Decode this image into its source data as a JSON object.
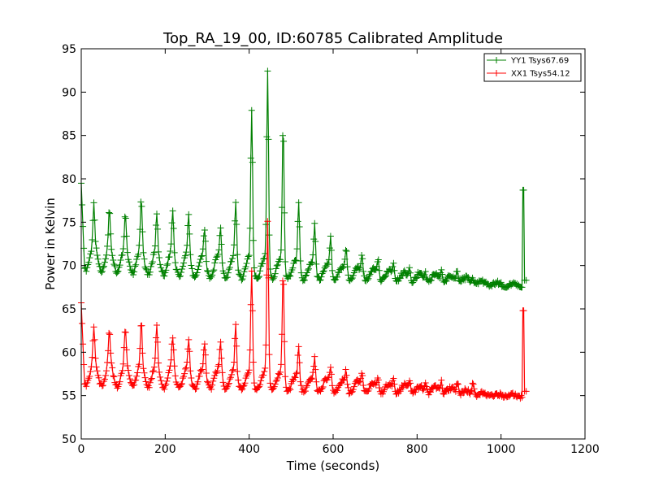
{
  "chart_data": {
    "type": "line",
    "title": "Top_RA_19_00, ID:60785 Calibrated Amplitude",
    "xlabel": "Time (seconds)",
    "ylabel": "Power in Kelvin",
    "xlim": [
      0,
      1200
    ],
    "ylim": [
      50,
      95
    ],
    "xticks": [
      0,
      200,
      400,
      600,
      800,
      1000,
      1200
    ],
    "yticks": [
      50,
      55,
      60,
      65,
      70,
      75,
      80,
      85,
      90,
      95
    ],
    "grid": false,
    "legend_position": "top-right",
    "marker": "+",
    "x_step": 2,
    "series": [
      {
        "name": "YY1 Tsys67.69",
        "color": "#008000",
        "start": [
          0,
          79.5
        ],
        "baseline": [
          [
            8,
            69.5
          ],
          [
            300,
            68.6
          ],
          [
            600,
            68.4
          ],
          [
            900,
            68.1
          ],
          [
            955,
            67.8
          ],
          [
            1050,
            67.5
          ]
        ],
        "oscillation_period": 37,
        "oscillation_amplitude": [
          [
            8,
            3.0
          ],
          [
            400,
            2.4
          ],
          [
            700,
            1.2
          ],
          [
            900,
            0.7
          ],
          [
            960,
            0.3
          ]
        ],
        "peaks": [
          [
            30,
            77.0
          ],
          [
            67,
            76.5
          ],
          [
            105,
            76.0
          ],
          [
            143,
            77.8
          ],
          [
            180,
            75.8
          ],
          [
            218,
            76.3
          ],
          [
            256,
            76.0
          ],
          [
            294,
            74.5
          ],
          [
            332,
            74.8
          ],
          [
            368,
            77.5
          ],
          [
            406,
            88.7
          ],
          [
            444,
            93.0
          ],
          [
            481,
            87.0
          ],
          [
            518,
            78.0
          ],
          [
            556,
            75.5
          ],
          [
            594,
            74.0
          ],
          [
            631,
            72.5
          ],
          [
            669,
            72.0
          ],
          [
            707,
            71.5
          ],
          [
            744,
            70.8
          ],
          [
            782,
            70.5
          ],
          [
            820,
            69.8
          ],
          [
            858,
            70.2
          ],
          [
            896,
            70.1
          ],
          [
            933,
            69.0
          ]
        ],
        "end_spike": [
          1052,
          78.7
        ],
        "end": [
          1060,
          68.3
        ]
      },
      {
        "name": "XX1 Tsys54.12",
        "color": "#ff0000",
        "start": [
          0,
          65.7
        ],
        "baseline": [
          [
            8,
            56.2
          ],
          [
            300,
            55.8
          ],
          [
            600,
            55.4
          ],
          [
            900,
            55.2
          ],
          [
            955,
            55.0
          ],
          [
            1050,
            54.8
          ]
        ],
        "oscillation_period": 37,
        "oscillation_amplitude": [
          [
            8,
            2.8
          ],
          [
            400,
            2.2
          ],
          [
            700,
            1.1
          ],
          [
            900,
            0.6
          ],
          [
            960,
            0.3
          ]
        ],
        "peaks": [
          [
            30,
            63.0
          ],
          [
            67,
            62.5
          ],
          [
            105,
            63.0
          ],
          [
            143,
            63.6
          ],
          [
            180,
            63.0
          ],
          [
            218,
            62.0
          ],
          [
            256,
            61.8
          ],
          [
            294,
            61.5
          ],
          [
            332,
            61.5
          ],
          [
            368,
            63.5
          ],
          [
            406,
            70.0
          ],
          [
            444,
            75.5
          ],
          [
            481,
            70.0
          ],
          [
            518,
            61.0
          ],
          [
            556,
            60.0
          ],
          [
            594,
            59.0
          ],
          [
            631,
            58.5
          ],
          [
            669,
            58.5
          ],
          [
            707,
            58.0
          ],
          [
            744,
            57.8
          ],
          [
            782,
            57.5
          ],
          [
            820,
            57.3
          ],
          [
            858,
            57.2
          ],
          [
            896,
            57.1
          ],
          [
            933,
            56.8
          ]
        ],
        "end_spike": [
          1052,
          64.8
        ],
        "end": [
          1060,
          55.5
        ]
      }
    ]
  }
}
